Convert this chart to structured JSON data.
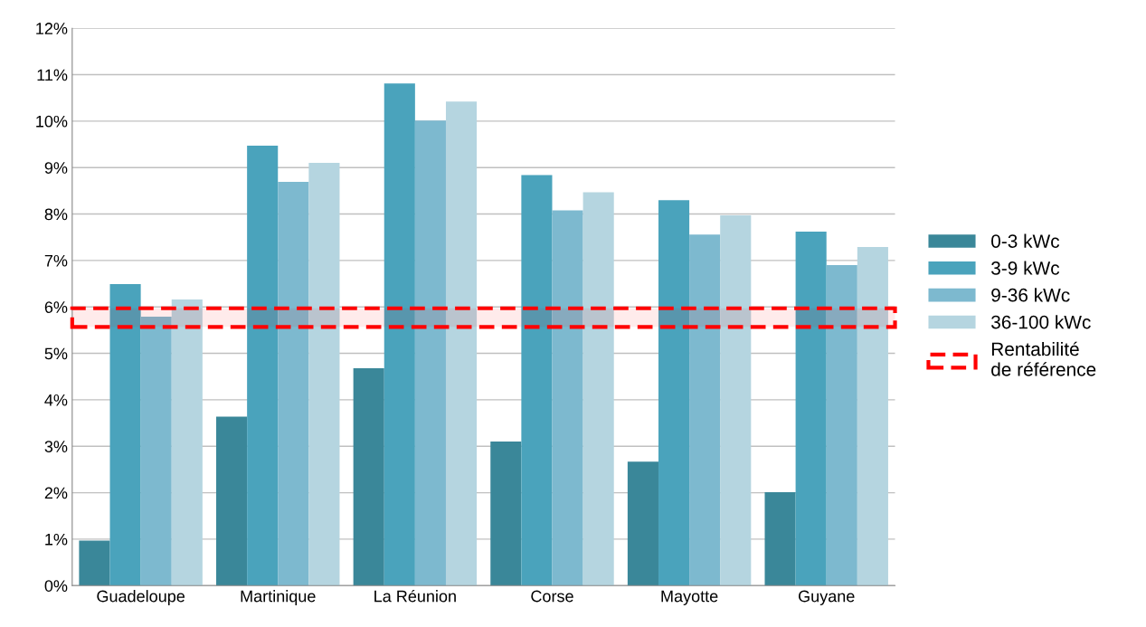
{
  "chart_data": {
    "type": "bar",
    "categories": [
      "Guadeloupe",
      "Martinique",
      "La Réunion",
      "Corse",
      "Mayotte",
      "Guyane"
    ],
    "series": [
      {
        "name": "0-3 kWc",
        "color": "#3a8799",
        "values": [
          0.97,
          3.64,
          4.68,
          3.1,
          2.67,
          2.01
        ]
      },
      {
        "name": "3-9 kWc",
        "color": "#4aa3bc",
        "values": [
          6.49,
          9.47,
          10.81,
          8.84,
          8.3,
          7.62
        ]
      },
      {
        "name": "9-36 kWc",
        "color": "#7db9cf",
        "values": [
          5.79,
          8.69,
          10.01,
          8.08,
          7.56,
          6.9
        ]
      },
      {
        "name": "36-100 kWc",
        "color": "#b5d5e0",
        "values": [
          6.16,
          9.1,
          10.42,
          8.47,
          7.97,
          7.29
        ]
      }
    ],
    "ylim": [
      0,
      12
    ],
    "yticks": [
      {
        "value": 0,
        "label": "0%"
      },
      {
        "value": 1,
        "label": "1%"
      },
      {
        "value": 2,
        "label": "2%"
      },
      {
        "value": 3,
        "label": "3%"
      },
      {
        "value": 4,
        "label": "4%"
      },
      {
        "value": 5,
        "label": "5%"
      },
      {
        "value": 6,
        "label": "6%"
      },
      {
        "value": 7,
        "label": "7%"
      },
      {
        "value": 8,
        "label": "8%"
      },
      {
        "value": 9,
        "label": "9%"
      },
      {
        "value": 10,
        "label": "10%"
      },
      {
        "value": 11,
        "label": "11%"
      },
      {
        "value": 12,
        "label": "12%"
      }
    ],
    "bands": [
      {
        "axis": "y",
        "from": 5.57,
        "to": 5.97,
        "label": "Rentabilité\nde référence",
        "color": "#ff0000"
      }
    ],
    "grid": "y",
    "legend": "right"
  }
}
